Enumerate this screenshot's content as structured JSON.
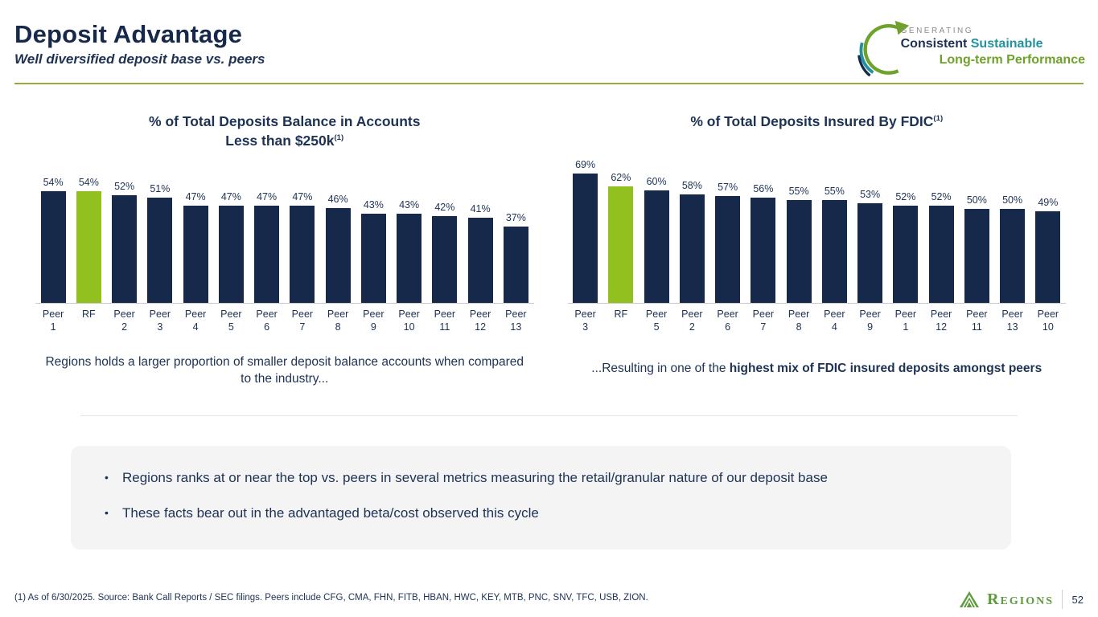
{
  "slide": {
    "title": "Deposit Advantage",
    "subtitle": "Well diversified deposit base vs. peers",
    "footnote": "(1) As of 6/30/2025. Source: Bank Call Reports / SEC filings. Peers include CFG, CMA, FHN, FITB, HBAN, HWC, KEY, MTB, PNC, SNV, TFC, USB, ZION.",
    "page_number": "52",
    "logo_text": "Regions"
  },
  "badge": {
    "line1": "GENERATING",
    "line2_part1": "Consistent ",
    "line2_part2": "Sustainable",
    "line3": "Long-term Performance"
  },
  "colors": {
    "navy": "#16294b",
    "highlight_green": "#92c01e",
    "rule_green": "#9aaa3f",
    "teal": "#2391a2",
    "badge_green": "#6fa22b",
    "badge_gray": "#8b8b8b",
    "logo_green": "#5e9b3e",
    "callout_bg": "#f4f4f5"
  },
  "chart_data": [
    {
      "type": "bar",
      "title": "% of Total Deposits Balance in Accounts Less than $250k(1)",
      "title_lines": [
        "% of Total Deposits Balance in Accounts",
        "Less than $250k"
      ],
      "title_superscript": "(1)",
      "categories": [
        "Peer 1",
        "RF",
        "Peer 2",
        "Peer 3",
        "Peer 4",
        "Peer 5",
        "Peer 6",
        "Peer 7",
        "Peer 8",
        "Peer 9",
        "Peer 10",
        "Peer 11",
        "Peer 12",
        "Peer 13"
      ],
      "values": [
        54,
        54,
        52,
        51,
        47,
        47,
        47,
        47,
        46,
        43,
        43,
        42,
        41,
        37
      ],
      "unit": "%",
      "data_labels": true,
      "y_axis_visible": false,
      "ylim": [
        0,
        60
      ],
      "bar_color": "#16294b",
      "highlight_category": "RF",
      "highlight_color": "#92c01e",
      "caption": {
        "prefix": "Regions holds a larger proportion of smaller deposit balance accounts when compared to the industry...",
        "bold": ""
      }
    },
    {
      "type": "bar",
      "title": "% of Total Deposits Insured By FDIC(1)",
      "title_lines": [
        "% of Total Deposits Insured By FDIC"
      ],
      "title_superscript": "(1)",
      "categories": [
        "Peer 3",
        "RF",
        "Peer 5",
        "Peer 2",
        "Peer 6",
        "Peer 7",
        "Peer 8",
        "Peer 4",
        "Peer 9",
        "Peer 1",
        "Peer 12",
        "Peer 11",
        "Peer 13",
        "Peer 10"
      ],
      "values": [
        69,
        62,
        60,
        58,
        57,
        56,
        55,
        55,
        53,
        52,
        52,
        50,
        50,
        49
      ],
      "unit": "%",
      "data_labels": true,
      "y_axis_visible": false,
      "ylim": [
        0,
        75
      ],
      "bar_color": "#16294b",
      "highlight_category": "RF",
      "highlight_color": "#92c01e",
      "caption": {
        "prefix": "...Resulting in one of the ",
        "bold": "highest mix of FDIC insured deposits amongst peers"
      }
    }
  ],
  "bullets": [
    "Regions ranks at or near the top vs. peers in several metrics measuring the retail/granular nature of our deposit base",
    "These facts bear out in the advantaged beta/cost observed this cycle"
  ]
}
